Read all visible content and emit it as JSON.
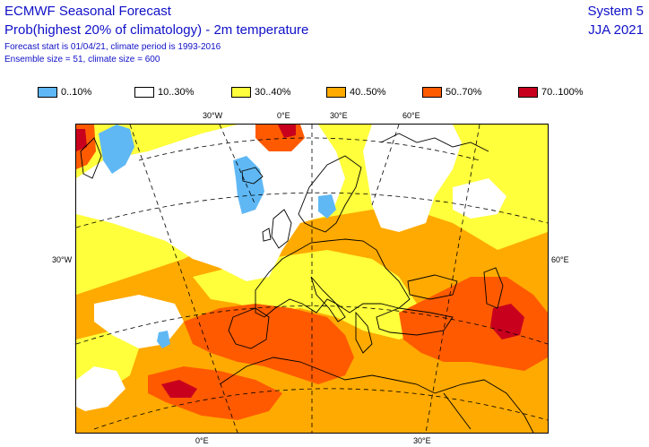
{
  "header": {
    "title": "ECMWF Seasonal Forecast",
    "subtitle": "Prob(highest 20% of climatology) - 2m temperature",
    "forecast_info": "Forecast start is 01/04/21, climate period is 1993-2016",
    "ensemble_info": "Ensemble size = 51, climate size = 600",
    "system": "System 5",
    "season": "JJA 2021"
  },
  "legend": [
    {
      "label": "0..10%",
      "color": "#5fb8f4"
    },
    {
      "label": "10..30%",
      "color": "#ffffff"
    },
    {
      "label": "30..40%",
      "color": "#ffff3c"
    },
    {
      "label": "40..50%",
      "color": "#ffaa00"
    },
    {
      "label": "50..70%",
      "color": "#ff5a00"
    },
    {
      "label": "70..100%",
      "color": "#c8001e"
    }
  ],
  "coords": {
    "top_30w": "30°W",
    "top_0e": "0°E",
    "top_30e": "30°E",
    "top_60e": "60°E",
    "left_30w": "30°W",
    "right_60e": "60°E",
    "bottom_0e": "0°E",
    "bottom_30e": "30°E"
  },
  "colors": {
    "title": "#1010c8",
    "blue": "#5fb8f4",
    "yellow": "#ffff3c",
    "orange": "#ffaa00",
    "red_orange": "#ff5a00",
    "dark_red": "#c8001e"
  }
}
